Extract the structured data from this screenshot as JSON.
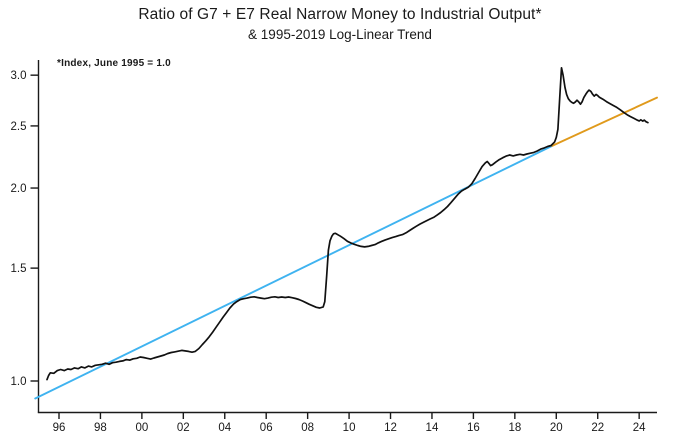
{
  "chart_data": {
    "type": "line",
    "title": "Ratio of G7 + E7 Real Narrow Money to Industrial Output*",
    "subtitle": "& 1995-2019 Log-Linear Trend",
    "annotation": "*Index, June 1995 = 1.0",
    "y_scale": "log",
    "xlim": [
      1994.85,
      2024.9
    ],
    "ylim": [
      0.89,
      3.17
    ],
    "grid": false,
    "legend": "none",
    "colors": {
      "data_line": "#111111",
      "trend_line": "#3fb3f0",
      "trend_extension": "#e09a1c",
      "axis": "#1a1a1a"
    },
    "y_ticks": [
      {
        "value": 1.0,
        "label": "1.0"
      },
      {
        "value": 1.5,
        "label": "1.5"
      },
      {
        "value": 2.0,
        "label": "2.0"
      },
      {
        "value": 2.5,
        "label": "2.5"
      },
      {
        "value": 3.0,
        "label": "3.0"
      }
    ],
    "x_ticks": [
      {
        "year": 1996,
        "label": "96"
      },
      {
        "year": 1998,
        "label": "98"
      },
      {
        "year": 2000,
        "label": "00"
      },
      {
        "year": 2002,
        "label": "02"
      },
      {
        "year": 2004,
        "label": "04"
      },
      {
        "year": 2006,
        "label": "06"
      },
      {
        "year": 2008,
        "label": "08"
      },
      {
        "year": 2010,
        "label": "10"
      },
      {
        "year": 2012,
        "label": "12"
      },
      {
        "year": 2014,
        "label": "14"
      },
      {
        "year": 2016,
        "label": "16"
      },
      {
        "year": 2018,
        "label": "18"
      },
      {
        "year": 2020,
        "label": "20"
      },
      {
        "year": 2022,
        "label": "22"
      },
      {
        "year": 2024,
        "label": "24"
      }
    ],
    "series": [
      {
        "id": "ratio",
        "name": "G7 + E7 real narrow money to industrial output ratio",
        "color": "#111111",
        "width": 1.7,
        "points": [
          [
            1995.42,
            1.005
          ],
          [
            1995.5,
            1.02
          ],
          [
            1995.58,
            1.03
          ],
          [
            1995.75,
            1.028
          ],
          [
            1995.92,
            1.038
          ],
          [
            1996.08,
            1.042
          ],
          [
            1996.25,
            1.038
          ],
          [
            1996.42,
            1.044
          ],
          [
            1996.58,
            1.042
          ],
          [
            1996.75,
            1.048
          ],
          [
            1996.92,
            1.045
          ],
          [
            1997.08,
            1.052
          ],
          [
            1997.25,
            1.048
          ],
          [
            1997.42,
            1.055
          ],
          [
            1997.58,
            1.052
          ],
          [
            1997.75,
            1.058
          ],
          [
            1997.92,
            1.06
          ],
          [
            1998.08,
            1.062
          ],
          [
            1998.25,
            1.066
          ],
          [
            1998.42,
            1.062
          ],
          [
            1998.58,
            1.068
          ],
          [
            1998.75,
            1.07
          ],
          [
            1998.92,
            1.073
          ],
          [
            1999.08,
            1.075
          ],
          [
            1999.25,
            1.08
          ],
          [
            1999.42,
            1.078
          ],
          [
            1999.58,
            1.083
          ],
          [
            1999.75,
            1.085
          ],
          [
            1999.92,
            1.09
          ],
          [
            2000.08,
            1.088
          ],
          [
            2000.25,
            1.085
          ],
          [
            2000.42,
            1.082
          ],
          [
            2000.58,
            1.086
          ],
          [
            2000.75,
            1.09
          ],
          [
            2000.92,
            1.094
          ],
          [
            2001.08,
            1.098
          ],
          [
            2001.25,
            1.104
          ],
          [
            2001.42,
            1.108
          ],
          [
            2001.58,
            1.11
          ],
          [
            2001.75,
            1.113
          ],
          [
            2001.92,
            1.116
          ],
          [
            2002.08,
            1.114
          ],
          [
            2002.25,
            1.112
          ],
          [
            2002.42,
            1.109
          ],
          [
            2002.58,
            1.112
          ],
          [
            2002.75,
            1.124
          ],
          [
            2002.92,
            1.14
          ],
          [
            2003.08,
            1.155
          ],
          [
            2003.25,
            1.172
          ],
          [
            2003.42,
            1.192
          ],
          [
            2003.58,
            1.213
          ],
          [
            2003.75,
            1.235
          ],
          [
            2003.92,
            1.258
          ],
          [
            2004.08,
            1.278
          ],
          [
            2004.25,
            1.3
          ],
          [
            2004.42,
            1.318
          ],
          [
            2004.58,
            1.33
          ],
          [
            2004.75,
            1.34
          ],
          [
            2004.92,
            1.344
          ],
          [
            2005.08,
            1.347
          ],
          [
            2005.25,
            1.351
          ],
          [
            2005.42,
            1.353
          ],
          [
            2005.58,
            1.35
          ],
          [
            2005.75,
            1.347
          ],
          [
            2005.92,
            1.344
          ],
          [
            2006.08,
            1.347
          ],
          [
            2006.25,
            1.351
          ],
          [
            2006.42,
            1.353
          ],
          [
            2006.58,
            1.35
          ],
          [
            2006.75,
            1.352
          ],
          [
            2006.92,
            1.35
          ],
          [
            2007.08,
            1.352
          ],
          [
            2007.25,
            1.349
          ],
          [
            2007.42,
            1.345
          ],
          [
            2007.58,
            1.34
          ],
          [
            2007.75,
            1.333
          ],
          [
            2007.92,
            1.325
          ],
          [
            2008.08,
            1.317
          ],
          [
            2008.25,
            1.31
          ],
          [
            2008.42,
            1.303
          ],
          [
            2008.58,
            1.3
          ],
          [
            2008.75,
            1.305
          ],
          [
            2008.83,
            1.33
          ],
          [
            2008.92,
            1.46
          ],
          [
            2009.0,
            1.6
          ],
          [
            2009.08,
            1.655
          ],
          [
            2009.17,
            1.683
          ],
          [
            2009.25,
            1.697
          ],
          [
            2009.33,
            1.7
          ],
          [
            2009.42,
            1.694
          ],
          [
            2009.58,
            1.682
          ],
          [
            2009.75,
            1.668
          ],
          [
            2009.92,
            1.652
          ],
          [
            2010.08,
            1.642
          ],
          [
            2010.25,
            1.634
          ],
          [
            2010.42,
            1.627
          ],
          [
            2010.58,
            1.622
          ],
          [
            2010.75,
            1.619
          ],
          [
            2010.92,
            1.622
          ],
          [
            2011.08,
            1.627
          ],
          [
            2011.25,
            1.632
          ],
          [
            2011.42,
            1.643
          ],
          [
            2011.58,
            1.652
          ],
          [
            2011.75,
            1.66
          ],
          [
            2011.92,
            1.667
          ],
          [
            2012.08,
            1.674
          ],
          [
            2012.25,
            1.68
          ],
          [
            2012.42,
            1.687
          ],
          [
            2012.58,
            1.692
          ],
          [
            2012.75,
            1.703
          ],
          [
            2012.92,
            1.717
          ],
          [
            2013.08,
            1.73
          ],
          [
            2013.25,
            1.744
          ],
          [
            2013.42,
            1.757
          ],
          [
            2013.58,
            1.768
          ],
          [
            2013.75,
            1.779
          ],
          [
            2013.92,
            1.79
          ],
          [
            2014.08,
            1.8
          ],
          [
            2014.25,
            1.815
          ],
          [
            2014.42,
            1.832
          ],
          [
            2014.58,
            1.85
          ],
          [
            2014.75,
            1.872
          ],
          [
            2014.92,
            1.898
          ],
          [
            2015.08,
            1.925
          ],
          [
            2015.25,
            1.955
          ],
          [
            2015.42,
            1.978
          ],
          [
            2015.58,
            1.992
          ],
          [
            2015.75,
            2.005
          ],
          [
            2015.92,
            2.03
          ],
          [
            2016.08,
            2.07
          ],
          [
            2016.25,
            2.115
          ],
          [
            2016.42,
            2.16
          ],
          [
            2016.58,
            2.19
          ],
          [
            2016.67,
            2.2
          ],
          [
            2016.75,
            2.185
          ],
          [
            2016.83,
            2.168
          ],
          [
            2016.92,
            2.175
          ],
          [
            2017.08,
            2.195
          ],
          [
            2017.25,
            2.215
          ],
          [
            2017.42,
            2.23
          ],
          [
            2017.58,
            2.243
          ],
          [
            2017.75,
            2.252
          ],
          [
            2017.92,
            2.245
          ],
          [
            2018.08,
            2.252
          ],
          [
            2018.25,
            2.258
          ],
          [
            2018.42,
            2.252
          ],
          [
            2018.58,
            2.26
          ],
          [
            2018.75,
            2.267
          ],
          [
            2018.92,
            2.273
          ],
          [
            2019.08,
            2.285
          ],
          [
            2019.25,
            2.3
          ],
          [
            2019.42,
            2.31
          ],
          [
            2019.58,
            2.322
          ],
          [
            2019.75,
            2.33
          ],
          [
            2019.92,
            2.36
          ],
          [
            2020.0,
            2.4
          ],
          [
            2020.08,
            2.47
          ],
          [
            2020.17,
            2.78
          ],
          [
            2020.25,
            3.08
          ],
          [
            2020.33,
            3.0
          ],
          [
            2020.42,
            2.87
          ],
          [
            2020.5,
            2.8
          ],
          [
            2020.58,
            2.757
          ],
          [
            2020.67,
            2.733
          ],
          [
            2020.75,
            2.72
          ],
          [
            2020.83,
            2.712
          ],
          [
            2020.92,
            2.724
          ],
          [
            2021.0,
            2.742
          ],
          [
            2021.08,
            2.725
          ],
          [
            2021.17,
            2.703
          ],
          [
            2021.25,
            2.728
          ],
          [
            2021.33,
            2.768
          ],
          [
            2021.42,
            2.8
          ],
          [
            2021.5,
            2.825
          ],
          [
            2021.58,
            2.843
          ],
          [
            2021.67,
            2.83
          ],
          [
            2021.75,
            2.803
          ],
          [
            2021.83,
            2.783
          ],
          [
            2021.92,
            2.8
          ],
          [
            2022.0,
            2.788
          ],
          [
            2022.08,
            2.772
          ],
          [
            2022.25,
            2.752
          ],
          [
            2022.42,
            2.728
          ],
          [
            2022.58,
            2.71
          ],
          [
            2022.75,
            2.69
          ],
          [
            2022.92,
            2.672
          ],
          [
            2023.08,
            2.65
          ],
          [
            2023.25,
            2.625
          ],
          [
            2023.42,
            2.603
          ],
          [
            2023.58,
            2.585
          ],
          [
            2023.75,
            2.568
          ],
          [
            2023.92,
            2.552
          ],
          [
            2024.0,
            2.545
          ],
          [
            2024.08,
            2.556
          ],
          [
            2024.17,
            2.544
          ],
          [
            2024.25,
            2.553
          ],
          [
            2024.33,
            2.538
          ],
          [
            2024.42,
            2.53
          ]
        ]
      },
      {
        "id": "trend",
        "name": "1995-2019 log-linear trend",
        "color": "#3fb3f0",
        "width": 1.9,
        "points": [
          [
            1994.85,
            0.939
          ],
          [
            2019.8,
            2.327
          ]
        ]
      },
      {
        "id": "trend-extension",
        "name": "trend extension beyond 2019",
        "color": "#e09a1c",
        "width": 1.9,
        "points": [
          [
            2019.8,
            2.327
          ],
          [
            2024.86,
            2.768
          ]
        ]
      }
    ]
  }
}
